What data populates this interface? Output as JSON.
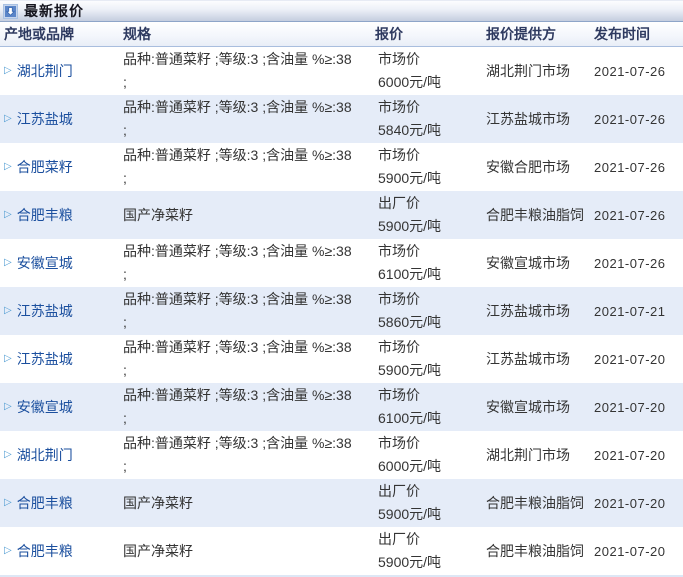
{
  "header": {
    "title": "最新报价",
    "icon": "download-arrow-icon"
  },
  "table": {
    "columns": [
      "产地或品牌",
      "规格",
      "报价",
      "报价提供方",
      "发布时间"
    ],
    "rows": [
      {
        "origin": "湖北荆门",
        "spec_lines": [
          "品种:普通菜籽 ;等级:3 ;含油量 %≥:38",
          ";"
        ],
        "price_type": "市场价",
        "price_value": "6000元/吨",
        "provider": "湖北荆门市场",
        "date": "2021-07-26"
      },
      {
        "origin": "江苏盐城",
        "spec_lines": [
          "品种:普通菜籽 ;等级:3 ;含油量 %≥:38",
          ";"
        ],
        "price_type": "市场价",
        "price_value": "5840元/吨",
        "provider": "江苏盐城市场",
        "date": "2021-07-26"
      },
      {
        "origin": "合肥菜籽",
        "spec_lines": [
          "品种:普通菜籽 ;等级:3 ;含油量 %≥:38",
          ";"
        ],
        "price_type": "市场价",
        "price_value": "5900元/吨",
        "provider": "安徽合肥市场",
        "date": "2021-07-26"
      },
      {
        "origin": "合肥丰粮",
        "spec_lines": [
          "国产净菜籽"
        ],
        "price_type": "出厂价",
        "price_value": "5900元/吨",
        "provider": "合肥丰粮油脂饲",
        "date": "2021-07-26"
      },
      {
        "origin": "安徽宣城",
        "spec_lines": [
          "品种:普通菜籽 ;等级:3 ;含油量 %≥:38",
          ";"
        ],
        "price_type": "市场价",
        "price_value": "6100元/吨",
        "provider": "安徽宣城市场",
        "date": "2021-07-26"
      },
      {
        "origin": "江苏盐城",
        "spec_lines": [
          "品种:普通菜籽 ;等级:3 ;含油量 %≥:38",
          ";"
        ],
        "price_type": "市场价",
        "price_value": "5860元/吨",
        "provider": "江苏盐城市场",
        "date": "2021-07-21"
      },
      {
        "origin": "江苏盐城",
        "spec_lines": [
          "品种:普通菜籽 ;等级:3 ;含油量 %≥:38",
          ";"
        ],
        "price_type": "市场价",
        "price_value": "5900元/吨",
        "provider": "江苏盐城市场",
        "date": "2021-07-20"
      },
      {
        "origin": "安徽宣城",
        "spec_lines": [
          "品种:普通菜籽 ;等级:3 ;含油量 %≥:38",
          ";"
        ],
        "price_type": "市场价",
        "price_value": "6100元/吨",
        "provider": "安徽宣城市场",
        "date": "2021-07-20"
      },
      {
        "origin": "湖北荆门",
        "spec_lines": [
          "品种:普通菜籽 ;等级:3 ;含油量 %≥:38",
          ";"
        ],
        "price_type": "市场价",
        "price_value": "6000元/吨",
        "provider": "湖北荆门市场",
        "date": "2021-07-20"
      },
      {
        "origin": "合肥丰粮",
        "spec_lines": [
          "国产净菜籽"
        ],
        "price_type": "出厂价",
        "price_value": "5900元/吨",
        "provider": "合肥丰粮油脂饲",
        "date": "2021-07-20"
      },
      {
        "origin": "合肥丰粮",
        "spec_lines": [
          "国产净菜籽"
        ],
        "price_type": "出厂价",
        "price_value": "5900元/吨",
        "provider": "合肥丰粮油脂饲",
        "date": "2021-07-20"
      }
    ]
  },
  "colors": {
    "accent_blue": "#5b85c8",
    "stripe_blue": "#e5ecf8",
    "link_blue": "#1b4f9e",
    "titlebar_border": "#8ea5c8",
    "header_border": "#a9bede"
  }
}
